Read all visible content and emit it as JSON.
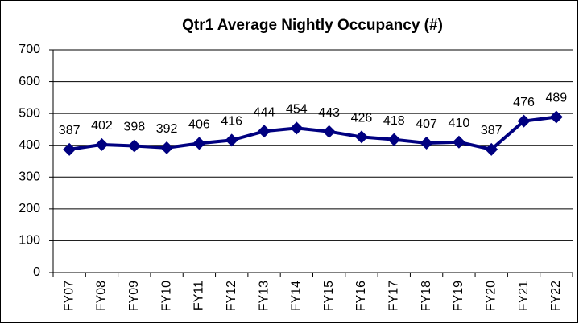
{
  "chart_data": {
    "type": "line",
    "title": "Qtr1 Average Nightly Occupancy (#)",
    "categories": [
      "FY07",
      "FY08",
      "FY09",
      "FY10",
      "FY11",
      "FY12",
      "FY13",
      "FY14",
      "FY15",
      "FY16",
      "FY17",
      "FY18",
      "FY19",
      "FY20",
      "FY21",
      "FY22"
    ],
    "series": [
      {
        "name": "Qtr1 Average Nightly Occupancy",
        "color": "#000080",
        "values": [
          387,
          402,
          398,
          392,
          406,
          416,
          444,
          454,
          443,
          426,
          418,
          407,
          410,
          387,
          476,
          489
        ]
      }
    ],
    "ylim": [
      0,
      700
    ],
    "yticks": [
      0,
      100,
      200,
      300,
      400,
      500,
      600,
      700
    ],
    "grid": true
  }
}
